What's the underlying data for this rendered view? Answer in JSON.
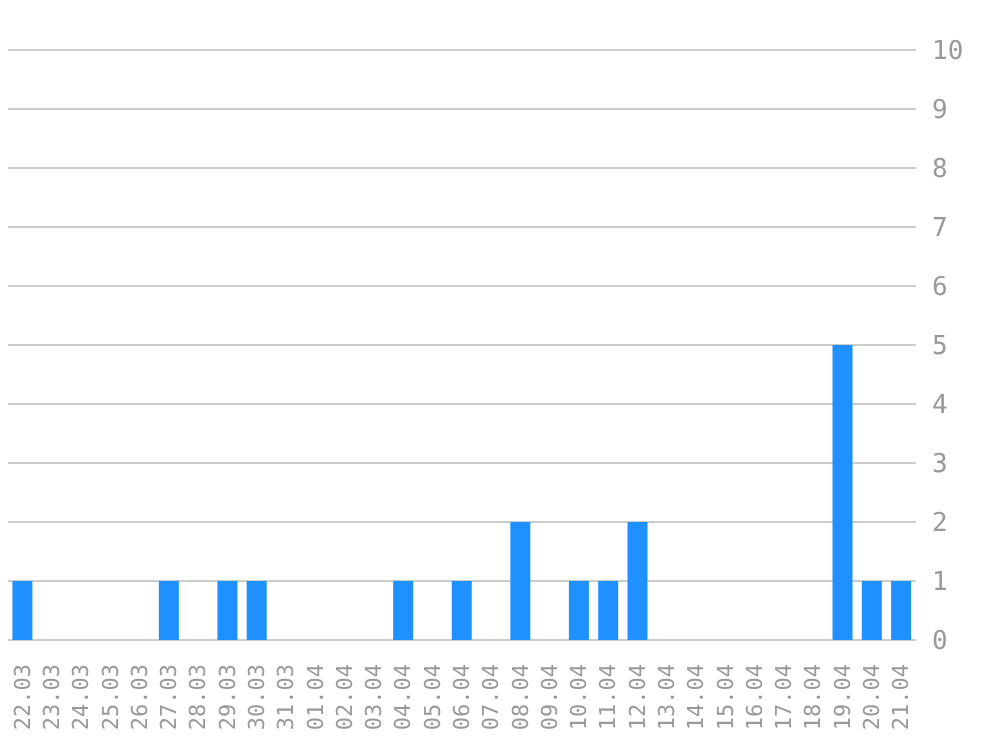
{
  "chart_data": {
    "type": "bar",
    "categories": [
      "22.03",
      "23.03",
      "24.03",
      "25.03",
      "26.03",
      "27.03",
      "28.03",
      "29.03",
      "30.03",
      "31.03",
      "01.04",
      "02.04",
      "03.04",
      "04.04",
      "05.04",
      "06.04",
      "07.04",
      "08.04",
      "09.04",
      "10.04",
      "11.04",
      "12.04",
      "13.04",
      "14.04",
      "15.04",
      "16.04",
      "17.04",
      "18.04",
      "19.04",
      "20.04",
      "21.04"
    ],
    "values": [
      1,
      0,
      0,
      0,
      0,
      1,
      0,
      1,
      1,
      0,
      0,
      0,
      0,
      1,
      0,
      1,
      0,
      2,
      0,
      1,
      1,
      2,
      0,
      0,
      0,
      0,
      0,
      0,
      5,
      1,
      1
    ],
    "color": "#1e90ff",
    "ylim": [
      0,
      10
    ],
    "yticks": [
      0,
      1,
      2,
      3,
      4,
      5,
      6,
      7,
      8,
      9,
      10
    ],
    "grid": "y"
  }
}
